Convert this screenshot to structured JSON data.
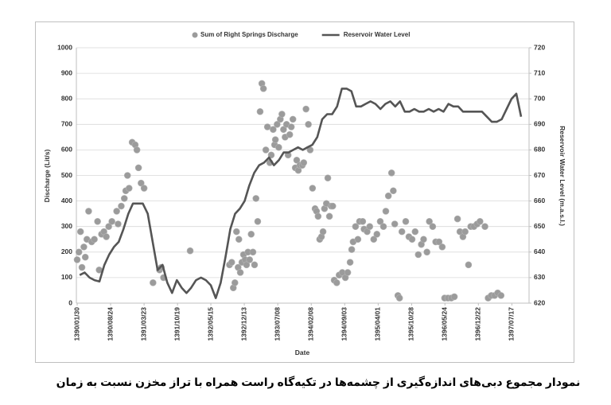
{
  "chart_data": {
    "type": "line",
    "x_label": "Date",
    "y_label": "Discharge (Lit/s)",
    "y2_label": "Reservoir Water Level (m.a.s.l.)",
    "caption": "نمودار مجموع دبی‌های اندازه‌گیری از چشمه‌ها در تکیه‌گاه راست همراه با تراز مخزن نسبت به زمان",
    "xlim": [
      "1390/01/25",
      "1397/11/05"
    ],
    "xticks": [
      "1390/01/30",
      "1390/08/24",
      "1391/03/23",
      "1391/10/19",
      "1392/05/15",
      "1392/12/13",
      "1393/07/08",
      "1394/02/08",
      "1394/09/03",
      "1395/04/01",
      "1395/10/28",
      "1396/05/24",
      "1396/12/22",
      "1397/07/17"
    ],
    "ylim": [
      0,
      1000
    ],
    "yticks": [
      0,
      100,
      200,
      300,
      400,
      500,
      600,
      700,
      800,
      900,
      1000
    ],
    "y2lim": [
      620,
      720
    ],
    "y2ticks": [
      620,
      630,
      640,
      650,
      660,
      670,
      680,
      690,
      700,
      710,
      720
    ],
    "grid": true,
    "legend": "top",
    "series": [
      {
        "name": "Sum of Right Springs Discharge",
        "type": "scatter",
        "color": "#9b9b9b",
        "x": [
          "1390/01/30",
          "1390/02/10",
          "1390/02/20",
          "1390/02/29",
          "1390/03/10",
          "1390/03/19",
          "1390/03/29",
          "1390/04/09",
          "1390/04/28",
          "1390/05/14",
          "1390/06/03",
          "1390/06/13",
          "1390/06/28",
          "1390/07/12",
          "1390/07/27",
          "1390/08/12",
          "1390/09/02",
          "1390/10/02",
          "1390/10/11",
          "1390/11/01",
          "1390/11/20",
          "1390/11/29",
          "1390/12/10",
          "1390/12/20",
          "1391/01/10",
          "1391/01/29",
          "1391/02/09",
          "1391/02/19",
          "1391/03/04",
          "1391/03/23",
          "1391/05/17",
          "1391/06/27",
          "1391/07/07",
          "1391/07/21",
          "1392/01/09",
          "1392/09/10",
          "1392/09/24",
          "1392/10/04",
          "1392/10/14",
          "1392/10/24",
          "1392/11/04",
          "1392/11/09",
          "1392/11/18",
          "1392/11/28",
          "1392/12/08",
          "1392/12/18",
          "1392/12/27",
          "1393/01/07",
          "1393/01/17",
          "1393/01/27",
          "1393/02/07",
          "1393/02/17",
          "1393/02/26",
          "1393/03/06",
          "1393/03/21",
          "1393/04/01",
          "1393/04/11",
          "1393/04/26",
          "1393/05/05",
          "1393/05/20",
          "1393/05/29",
          "1393/06/10",
          "1393/06/19",
          "1393/06/24",
          "1393/07/04",
          "1393/07/14",
          "1393/07/24",
          "1393/08/04",
          "1393/08/14",
          "1393/08/24",
          "1393/09/03",
          "1393/09/13",
          "1393/09/23",
          "1393/10/03",
          "1393/10/13",
          "1393/10/28",
          "1393/11/07",
          "1393/11/17",
          "1393/11/27",
          "1393/12/12",
          "1393/12/21",
          "1394/01/06",
          "1394/01/21",
          "1394/02/01",
          "1394/02/16",
          "1394/03/01",
          "1394/03/10",
          "1394/03/20",
          "1394/03/30",
          "1394/04/10",
          "1394/04/20",
          "1394/04/29",
          "1394/05/10",
          "1394/05/19",
          "1394/05/29",
          "1394/06/09",
          "1394/06/19",
          "1394/06/28",
          "1394/07/13",
          "1394/07/28",
          "1394/08/18",
          "1394/09/07",
          "1394/09/22",
          "1394/10/07",
          "1394/10/17",
          "1394/10/26",
          "1394/11/11",
          "1394/11/26",
          "1394/12/06",
          "1394/12/26",
          "1395/01/05",
          "1395/01/25",
          "1395/02/10",
          "1395/03/04",
          "1395/03/24",
          "1395/04/14",
          "1395/05/03",
          "1395/05/18",
          "1395/06/03",
          "1395/06/23",
          "1395/07/03",
          "1395/07/12",
          "1395/08/02",
          "1395/08/12",
          "1395/08/27",
          "1395/09/21",
          "1395/10/11",
          "1395/11/01",
          "1395/11/20",
          "1395/12/10",
          "1395/12/29",
          "1396/01/14",
          "1396/02/04",
          "1396/02/19",
          "1396/03/09",
          "1396/03/28",
          "1396/04/18",
          "1396/05/07",
          "1396/05/22",
          "1396/06/12",
          "1396/07/02",
          "1396/07/21",
          "1396/08/11",
          "1396/08/26",
          "1396/09/15",
          "1396/09/29",
          "1396/10/20",
          "1396/11/04",
          "1396/11/24",
          "1396/12/14",
          "1397/01/03",
          "1397/02/03",
          "1397/02/23",
          "1397/03/12",
          "1397/04/02",
          "1397/04/21",
          "1397/05/11"
        ],
        "values": [
          170,
          200,
          280,
          140,
          220,
          180,
          250,
          360,
          240,
          250,
          320,
          130,
          270,
          280,
          260,
          300,
          320,
          360,
          310,
          380,
          410,
          440,
          500,
          450,
          630,
          620,
          600,
          530,
          470,
          450,
          80,
          130,
          140,
          100,
          205,
          150,
          160,
          60,
          80,
          280,
          140,
          250,
          120,
          160,
          190,
          170,
          150,
          200,
          170,
          270,
          200,
          150,
          410,
          320,
          750,
          860,
          840,
          600,
          690,
          550,
          580,
          680,
          620,
          640,
          700,
          610,
          720,
          740,
          680,
          650,
          700,
          580,
          660,
          690,
          720,
          530,
          560,
          520,
          540,
          540,
          550,
          760,
          700,
          600,
          450,
          370,
          360,
          340,
          250,
          260,
          280,
          370,
          390,
          490,
          340,
          380,
          380,
          90,
          80,
          110,
          120,
          100,
          120,
          160,
          210,
          240,
          300,
          250,
          320,
          320,
          290,
          280,
          300,
          250,
          270,
          320,
          300,
          360,
          420,
          510,
          440,
          310,
          30,
          20,
          280,
          320,
          260,
          250,
          280,
          190,
          230,
          250,
          200,
          320,
          300,
          240,
          240,
          220,
          20,
          20,
          20,
          25,
          330,
          280,
          260,
          280,
          150,
          300,
          300,
          310,
          320,
          300,
          20,
          30,
          30,
          40,
          30
        ]
      },
      {
        "name": "Reservoir Water Level",
        "type": "line",
        "axis": "y2",
        "color": "#555555",
        "x": [
          "1390/02/15",
          "1390/03/15",
          "1390/04/15",
          "1390/05/15",
          "1390/06/15",
          "1390/07/15",
          "1390/08/15",
          "1390/09/15",
          "1390/10/15",
          "1390/11/15",
          "1390/12/15",
          "1391/01/15",
          "1391/02/15",
          "1391/03/15",
          "1391/04/15",
          "1391/05/15",
          "1391/06/15",
          "1391/07/15",
          "1391/08/15",
          "1391/09/15",
          "1391/10/15",
          "1391/11/15",
          "1391/12/15",
          "1392/01/15",
          "1392/02/15",
          "1392/03/15",
          "1392/04/15",
          "1392/05/15",
          "1392/06/15",
          "1392/07/15",
          "1392/08/15",
          "1392/09/15",
          "1392/10/15",
          "1392/11/15",
          "1392/12/15",
          "1393/01/15",
          "1393/02/15",
          "1393/03/15",
          "1393/04/15",
          "1393/05/15",
          "1393/06/15",
          "1393/07/15",
          "1393/08/15",
          "1393/09/15",
          "1393/10/15",
          "1393/11/15",
          "1393/12/15",
          "1394/01/15",
          "1394/02/15",
          "1394/03/15",
          "1394/04/15",
          "1394/05/15",
          "1394/06/15",
          "1394/07/15",
          "1394/08/15",
          "1394/09/15",
          "1394/10/15",
          "1394/11/15",
          "1394/12/15",
          "1395/01/15",
          "1395/02/15",
          "1395/03/15",
          "1395/04/15",
          "1395/05/15",
          "1395/06/15",
          "1395/07/15",
          "1395/08/15",
          "1395/09/15",
          "1395/10/15",
          "1395/11/15",
          "1395/12/15",
          "1396/01/15",
          "1396/02/15",
          "1396/03/15",
          "1396/04/15",
          "1396/05/15",
          "1396/06/15",
          "1396/07/15",
          "1396/08/15",
          "1396/09/15",
          "1396/10/15",
          "1396/11/15",
          "1396/12/15",
          "1397/01/15",
          "1397/02/15",
          "1397/03/15",
          "1397/04/15",
          "1397/05/15",
          "1397/06/15",
          "1397/07/15",
          "1397/08/15",
          "1397/09/15"
        ],
        "values": [
          631,
          632,
          630,
          629,
          628.5,
          635,
          639,
          642,
          644,
          649,
          655,
          659,
          659,
          659,
          655,
          644,
          633,
          635,
          628,
          624,
          629,
          626,
          624,
          626,
          629,
          630,
          629,
          627,
          622,
          628,
          638,
          649,
          655,
          657,
          660,
          666,
          671,
          674,
          675,
          677,
          674,
          676,
          679,
          679,
          680,
          681,
          680,
          681,
          682,
          685,
          692,
          694,
          694,
          697,
          704,
          704,
          703,
          697,
          697,
          698,
          699,
          698,
          696,
          698,
          699,
          697,
          699,
          695,
          695,
          696,
          695,
          695,
          696,
          695,
          696,
          695,
          698,
          697,
          697,
          695,
          695,
          695,
          695,
          695,
          693,
          691,
          691,
          692,
          696,
          700,
          702,
          693
        ]
      }
    ]
  }
}
